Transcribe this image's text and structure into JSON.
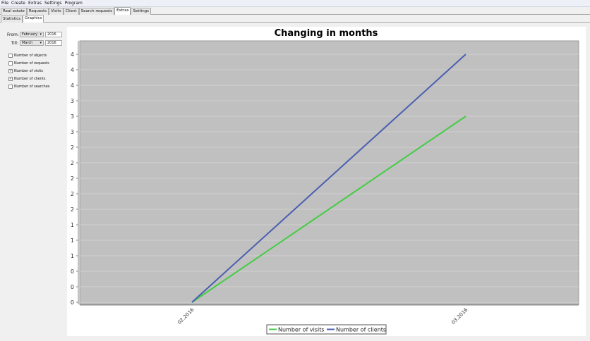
{
  "menu": [
    "File",
    "Create",
    "Extras",
    "Settings",
    "Program"
  ],
  "tabs": [
    "Real estate",
    "Requests",
    "Visits",
    "Client",
    "Search requests",
    "Extras",
    "Settings"
  ],
  "active_tab": "Extras",
  "subtabs": [
    "Statistics",
    "Graphics"
  ],
  "active_subtab": "Graphics",
  "filters": {
    "from_label": "From:",
    "from_month": "February",
    "from_year": "2016",
    "till_label": "Till:",
    "till_month": "March",
    "till_year": "2016"
  },
  "checkboxes": [
    {
      "label": "Number of objects",
      "checked": false
    },
    {
      "label": "Number of requests",
      "checked": false
    },
    {
      "label": "Number of visits",
      "checked": true
    },
    {
      "label": "Number of clients",
      "checked": true
    },
    {
      "label": "Number of searches",
      "checked": false
    }
  ],
  "chart_data": {
    "type": "line",
    "title": "Changing in months",
    "categories": [
      "02.2016",
      "03.2016"
    ],
    "series": [
      {
        "name": "Number of visits",
        "values": [
          0,
          3
        ],
        "color": "#44cc44"
      },
      {
        "name": "Number of clients",
        "values": [
          0,
          4
        ],
        "color": "#4a5fb0"
      }
    ],
    "ylim": [
      0,
      4
    ],
    "yticks": [
      0,
      0.25,
      0.5,
      0.75,
      1,
      1.25,
      1.5,
      1.75,
      2,
      2.25,
      2.5,
      2.75,
      3,
      3.25,
      3.5,
      3.75,
      4
    ],
    "ytick_labels": [
      "0",
      "0",
      "0",
      "1",
      "1",
      "1",
      "2",
      "2",
      "2",
      "2",
      "2",
      "3",
      "3",
      "3",
      "4",
      "4",
      "4"
    ],
    "grid": true,
    "plot_background": "#c0c0c0",
    "legend": "bottom"
  }
}
